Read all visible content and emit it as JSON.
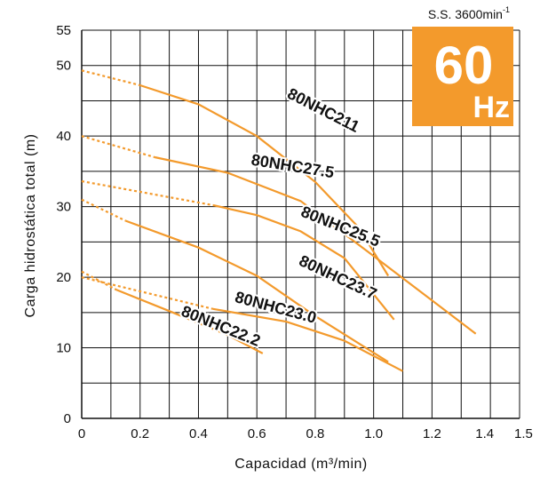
{
  "chart_data": {
    "type": "line",
    "title": "",
    "xlabel": "Capacidad (m³/min)",
    "ylabel": "Carga hidrostática total (m)",
    "xlim": [
      0,
      1.5
    ],
    "ylim": [
      0,
      55
    ],
    "x_ticks": [
      "0",
      "0.2",
      "0.4",
      "0.6",
      "0.8",
      "1.0",
      "1.2",
      "1.4",
      "1.5"
    ],
    "x_tick_values": [
      0,
      0.2,
      0.4,
      0.6,
      0.8,
      1.0,
      1.2,
      1.4,
      1.5
    ],
    "y_ticks": [
      "0",
      "10",
      "20",
      "30",
      "40",
      "50",
      "55"
    ],
    "y_tick_values": [
      0,
      10,
      20,
      30,
      40,
      50,
      55
    ],
    "grid": true,
    "line_color": "#f39a2c",
    "corner_note": "S.S. 3600min",
    "corner_note_sup": "-1",
    "badge": {
      "big": "60",
      "small": "Hz",
      "color": "#f39a2c"
    },
    "series": [
      {
        "label": "80NHC211",
        "dashed": [
          [
            0,
            49.3
          ],
          [
            0.2,
            47.2
          ]
        ],
        "solid": [
          [
            0.2,
            47.2
          ],
          [
            0.4,
            44.5
          ],
          [
            0.6,
            40.0
          ],
          [
            0.8,
            33.5
          ],
          [
            0.95,
            27.0
          ],
          [
            1.05,
            20.2
          ]
        ],
        "label_at": [
          0.82,
          43.0
        ],
        "label_angle": 27
      },
      {
        "label": "80NHC27.5",
        "dashed": [
          [
            0,
            40.0
          ],
          [
            0.25,
            37.0
          ]
        ],
        "solid": [
          [
            0.25,
            37.0
          ],
          [
            0.5,
            34.8
          ],
          [
            0.75,
            30.8
          ],
          [
            1.0,
            23.0
          ],
          [
            1.35,
            12.0
          ]
        ],
        "label_at": [
          0.72,
          35.0
        ],
        "label_angle": 9
      },
      {
        "label": "80NHC25.5",
        "dashed": [
          [
            0,
            33.6
          ],
          [
            0.45,
            30.2
          ]
        ],
        "solid": [
          [
            0.45,
            30.2
          ],
          [
            0.6,
            28.8
          ],
          [
            0.75,
            26.5
          ],
          [
            0.9,
            22.7
          ],
          [
            1.07,
            14.0
          ]
        ],
        "label_at": [
          0.88,
          26.5
        ],
        "label_angle": 22
      },
      {
        "label": "80NHC23.7",
        "dashed": [
          [
            0,
            31.0
          ],
          [
            0.15,
            28.0
          ]
        ],
        "solid": [
          [
            0.15,
            28.0
          ],
          [
            0.4,
            24.2
          ],
          [
            0.6,
            20.2
          ],
          [
            0.8,
            14.5
          ],
          [
            1.05,
            8.0
          ]
        ],
        "label_at": [
          0.87,
          19.3
        ],
        "label_angle": 25
      },
      {
        "label": "80NHC23.0",
        "dashed": [
          [
            0,
            20.0
          ],
          [
            0.45,
            15.5
          ]
        ],
        "solid": [
          [
            0.45,
            15.5
          ],
          [
            0.7,
            13.7
          ],
          [
            0.9,
            11.0
          ],
          [
            1.1,
            6.7
          ]
        ],
        "label_at": [
          0.66,
          15.0
        ],
        "label_angle": 15
      },
      {
        "label": "80NHC22.2",
        "dashed": [
          [
            0,
            20.8
          ],
          [
            0.12,
            18.2
          ]
        ],
        "solid": [
          [
            0.12,
            18.2
          ],
          [
            0.3,
            15.2
          ],
          [
            0.5,
            11.8
          ],
          [
            0.62,
            9.2
          ]
        ],
        "label_at": [
          0.47,
          12.4
        ],
        "label_angle": 22
      }
    ]
  }
}
